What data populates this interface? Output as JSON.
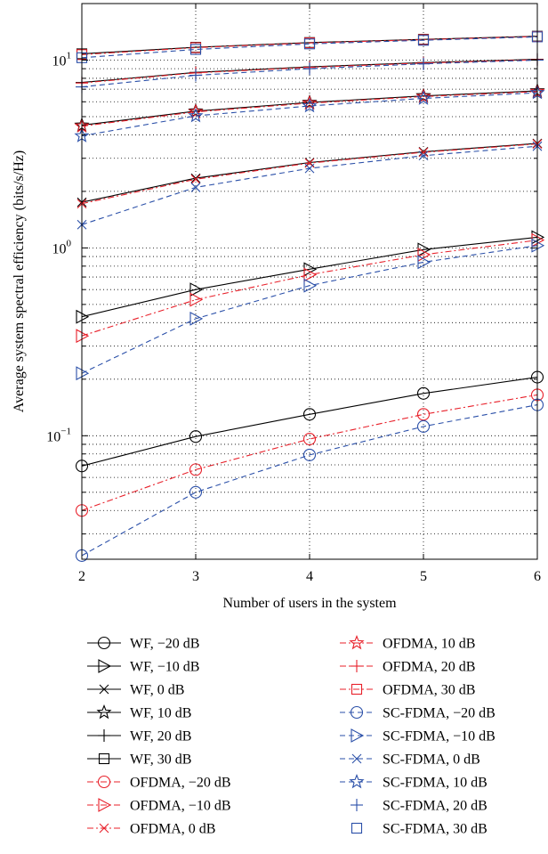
{
  "chart_data": {
    "type": "line",
    "xlabel": "Number of users in the system",
    "ylabel": "Average system spectral efficiency (bits/s/Hz)",
    "x": [
      2,
      3,
      4,
      5,
      6
    ],
    "x_ticks": [
      "2",
      "3",
      "4",
      "5",
      "6"
    ],
    "y_scale": "log",
    "xlim": [
      2,
      6
    ],
    "ylim": [
      0.022,
      20
    ],
    "y_ticks": [
      {
        "value": 0.1,
        "base": "10",
        "exp": "−1"
      },
      {
        "value": 1,
        "base": "10",
        "exp": "0"
      },
      {
        "value": 10,
        "base": "10",
        "exp": "1"
      }
    ],
    "grid": true,
    "legend_position": "below",
    "colors": {
      "WF": "#000000",
      "OFDMA": "#e8202a",
      "SC-FDMA": "#2a4fa8"
    },
    "series": [
      {
        "name": "WF, −20 dB",
        "values": [
          0.069,
          0.099,
          0.13,
          0.168,
          0.205
        ],
        "color": "#000000",
        "line": "solid",
        "marker": "circle"
      },
      {
        "name": "WF, −10 dB",
        "values": [
          0.43,
          0.6,
          0.77,
          0.98,
          1.14
        ],
        "color": "#000000",
        "line": "solid",
        "marker": "triangle-right"
      },
      {
        "name": "WF, 0 dB",
        "values": [
          1.75,
          2.35,
          2.85,
          3.25,
          3.6
        ],
        "color": "#000000",
        "line": "solid",
        "marker": "x"
      },
      {
        "name": "WF, 10 dB",
        "values": [
          4.5,
          5.35,
          5.95,
          6.45,
          6.85
        ],
        "color": "#000000",
        "line": "solid",
        "marker": "star"
      },
      {
        "name": "WF, 20 dB",
        "values": [
          7.6,
          8.6,
          9.2,
          9.7,
          10.1
        ],
        "color": "#000000",
        "line": "solid",
        "marker": "plus"
      },
      {
        "name": "WF, 30 dB",
        "values": [
          10.8,
          11.7,
          12.4,
          12.9,
          13.4
        ],
        "color": "#000000",
        "line": "solid",
        "marker": "square"
      },
      {
        "name": "OFDMA, −20 dB",
        "values": [
          0.04,
          0.066,
          0.096,
          0.13,
          0.165
        ],
        "color": "#e8202a",
        "line": "dashdot",
        "marker": "circle"
      },
      {
        "name": "OFDMA, −10 dB",
        "values": [
          0.34,
          0.53,
          0.72,
          0.92,
          1.1
        ],
        "color": "#e8202a",
        "line": "dashdot",
        "marker": "triangle-right"
      },
      {
        "name": "OFDMA, 0 dB",
        "values": [
          1.72,
          2.32,
          2.83,
          3.23,
          3.58
        ],
        "color": "#e8202a",
        "line": "dashdot",
        "marker": "x"
      },
      {
        "name": "OFDMA, 10 dB",
        "values": [
          4.45,
          5.3,
          5.9,
          6.4,
          6.8
        ],
        "color": "#e8202a",
        "line": "dashdot",
        "marker": "star"
      },
      {
        "name": "OFDMA, 20 dB",
        "values": [
          7.55,
          8.55,
          9.15,
          9.65,
          10.05
        ],
        "color": "#e8202a",
        "line": "dashdot",
        "marker": "plus"
      },
      {
        "name": "OFDMA, 30 dB",
        "values": [
          10.7,
          11.65,
          12.35,
          12.85,
          13.35
        ],
        "color": "#e8202a",
        "line": "dashdot",
        "marker": "square"
      },
      {
        "name": "SC-FDMA, −20 dB",
        "values": [
          0.023,
          0.05,
          0.079,
          0.112,
          0.146
        ],
        "color": "#2a4fa8",
        "line": "dashed",
        "marker": "circle"
      },
      {
        "name": "SC-FDMA, −10 dB",
        "values": [
          0.215,
          0.42,
          0.63,
          0.84,
          1.03
        ],
        "color": "#2a4fa8",
        "line": "dashed",
        "marker": "triangle-right"
      },
      {
        "name": "SC-FDMA, 0 dB",
        "values": [
          1.33,
          2.1,
          2.65,
          3.1,
          3.48
        ],
        "color": "#2a4fa8",
        "line": "dashed",
        "marker": "x"
      },
      {
        "name": "SC-FDMA, 10 dB",
        "values": [
          3.95,
          5.05,
          5.7,
          6.25,
          6.7
        ],
        "color": "#2a4fa8",
        "line": "dashed",
        "marker": "star"
      },
      {
        "name": "SC-FDMA, 20 dB",
        "values": [
          7.2,
          8.3,
          9.0,
          9.55,
          10.0
        ],
        "color": "#2a4fa8",
        "line": "dashed",
        "marker": "plus"
      },
      {
        "name": "SC-FDMA, 30 dB",
        "values": [
          10.3,
          11.4,
          12.2,
          12.75,
          13.3
        ],
        "color": "#2a4fa8",
        "line": "dashed",
        "marker": "square"
      }
    ]
  }
}
